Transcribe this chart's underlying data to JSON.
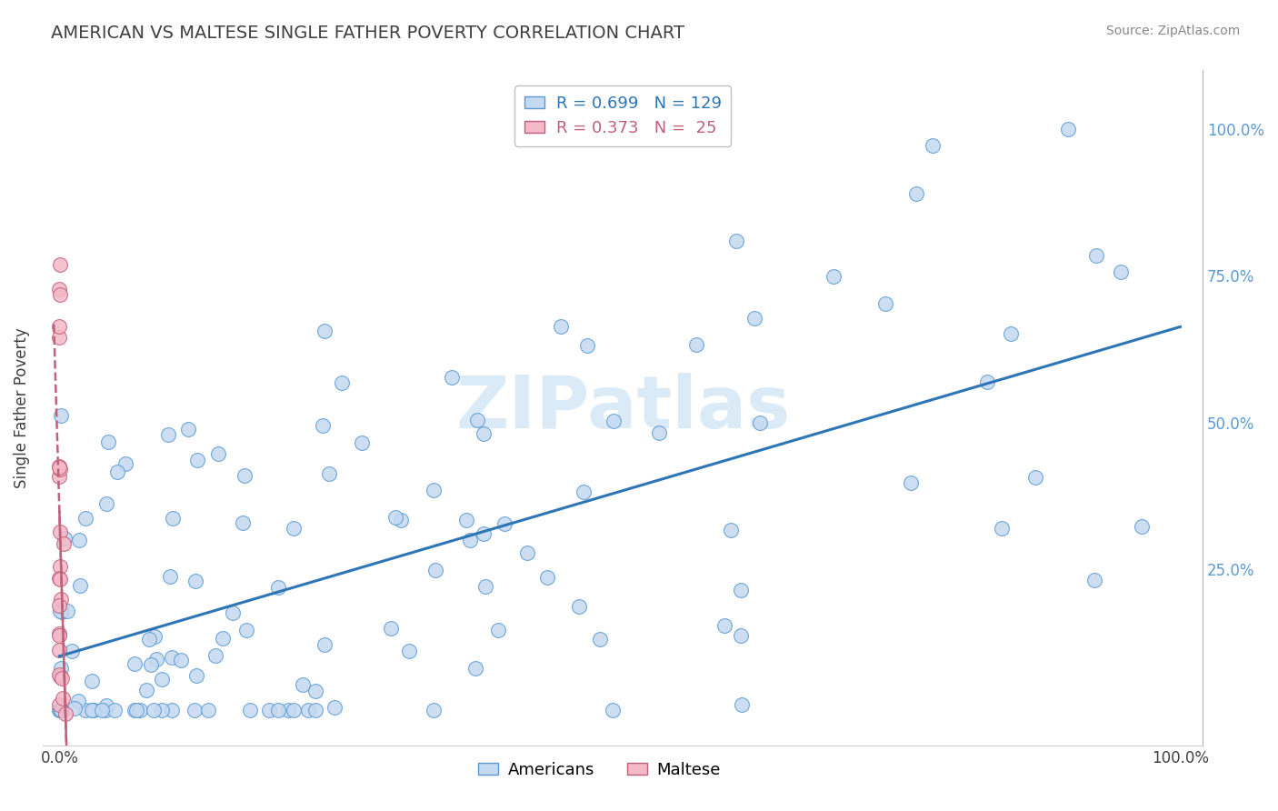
{
  "title": "AMERICAN VS MALTESE SINGLE FATHER POVERTY CORRELATION CHART",
  "source": "Source: ZipAtlas.com",
  "ylabel": "Single Father Poverty",
  "legend_r_american": "0.699",
  "legend_n_american": "129",
  "legend_r_maltese": "0.373",
  "legend_n_maltese": "25",
  "american_fill": "#c5d9f0",
  "american_edge": "#5b9bd5",
  "maltese_fill": "#f4b8c8",
  "maltese_edge": "#c0607a",
  "american_line_color": "#2e75b6",
  "maltese_line_color": "#c0607a",
  "bg_color": "#ffffff",
  "grid_color": "#d0d0d0",
  "title_color": "#404040",
  "axis_color": "#404040",
  "right_axis_color": "#5b9bd5",
  "watermark_color": "#d6e8f5",
  "legend_edge": "#c0c0c0",
  "source_color": "#888888"
}
